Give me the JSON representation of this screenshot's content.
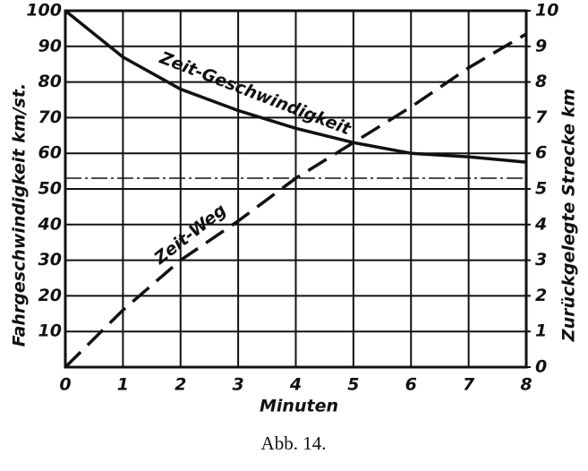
{
  "chart_data": {
    "type": "line",
    "y_label": "Fahrgeschwindigkeit km/st.",
    "y2_label": "Zurückgelegte Strecke km",
    "x_label": "Minuten",
    "caption": "Abb. 14.",
    "x": [
      0,
      1,
      2,
      3,
      4,
      5,
      6,
      7,
      8
    ],
    "xlim": [
      0,
      8
    ],
    "xticks": [
      0,
      1,
      2,
      3,
      4,
      5,
      6,
      7,
      8
    ],
    "ylim": [
      0,
      100
    ],
    "yticks": [
      10,
      20,
      30,
      40,
      50,
      60,
      70,
      80,
      90,
      100
    ],
    "y2lim": [
      0,
      10
    ],
    "y2ticks": [
      0,
      1,
      2,
      3,
      4,
      5,
      6,
      7,
      8,
      9,
      10
    ],
    "grid": true,
    "hline": {
      "value": 53,
      "style": "dash-dot",
      "color": "#111111"
    },
    "series": [
      {
        "name": "Zeit-Geschwindigkeit",
        "color": "#111111",
        "style": "solid",
        "values": [
          100,
          87,
          78,
          72,
          67,
          63,
          60,
          59,
          57.5
        ]
      },
      {
        "name": "Zeit-Weg",
        "color": "#111111",
        "style": "dashed",
        "axis": "y2",
        "values": [
          0,
          1.6,
          3.0,
          4.1,
          5.3,
          6.3,
          7.3,
          8.4,
          9.35
        ]
      }
    ]
  }
}
